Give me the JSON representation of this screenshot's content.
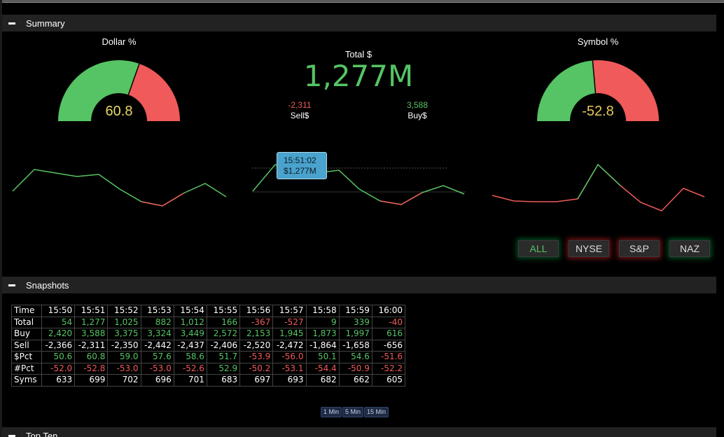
{
  "summary": {
    "header": "Summary",
    "dollar_gauge": {
      "title": "Dollar %",
      "value": "60.8",
      "pct": 60.8,
      "value_color": "#e8d860"
    },
    "symbol_gauge": {
      "title": "Symbol %",
      "value": "-52.8",
      "pct": 52.8,
      "value_color": "#e8c860"
    },
    "total": {
      "label": "Total $",
      "value": "1,277M"
    },
    "sell": {
      "value": "-2,311",
      "label": "Sell$"
    },
    "buy": {
      "value": "3,588",
      "label": "Buy$"
    },
    "tooltip": {
      "time": "15:51:02",
      "value": "$1,277M"
    },
    "filters": [
      "ALL",
      "NYSE",
      "S&P",
      "NAZ"
    ],
    "colors": {
      "positive": "#56c464",
      "negative": "#f05a5a"
    }
  },
  "snapshots": {
    "header": "Snapshots",
    "times": [
      "15:50",
      "15:51",
      "15:52",
      "15:53",
      "15:54",
      "15:55",
      "15:56",
      "15:57",
      "15:58",
      "15:59",
      "16:00"
    ],
    "rows": [
      {
        "label": "Total",
        "values": [
          "54",
          "1,277",
          "1,025",
          "882",
          "1,012",
          "166",
          "-367",
          "-527",
          "9",
          "339",
          "-40"
        ]
      },
      {
        "label": "Buy",
        "values": [
          "2,420",
          "3,588",
          "3,375",
          "3,324",
          "3,449",
          "2,572",
          "2,153",
          "1,945",
          "1,873",
          "1,997",
          "616"
        ]
      },
      {
        "label": "Sell",
        "values": [
          "-2,366",
          "-2,311",
          "-2,350",
          "-2,442",
          "-2,437",
          "-2,406",
          "-2,520",
          "-2,472",
          "-1,864",
          "-1,658",
          "-656"
        ]
      },
      {
        "label": "$Pct",
        "values": [
          "50.6",
          "60.8",
          "59.0",
          "57.6",
          "58.6",
          "51.7",
          "-53.9",
          "-56.0",
          "50.1",
          "54.6",
          "-51.6"
        ]
      },
      {
        "label": "#Pct",
        "values": [
          "-52.0",
          "-52.8",
          "-53.0",
          "-53.0",
          "-52.6",
          "52.9",
          "-50.2",
          "-53.1",
          "-54.4",
          "-50.9",
          "-52.2"
        ]
      },
      {
        "label": "Syms",
        "values": [
          "633",
          "699",
          "702",
          "696",
          "701",
          "683",
          "697",
          "693",
          "682",
          "662",
          "605"
        ]
      }
    ],
    "time_label": "Time",
    "intervals": [
      "1 Min",
      "5 Min",
      "15 Min"
    ]
  },
  "top_ten": {
    "header": "Top Ten"
  }
}
